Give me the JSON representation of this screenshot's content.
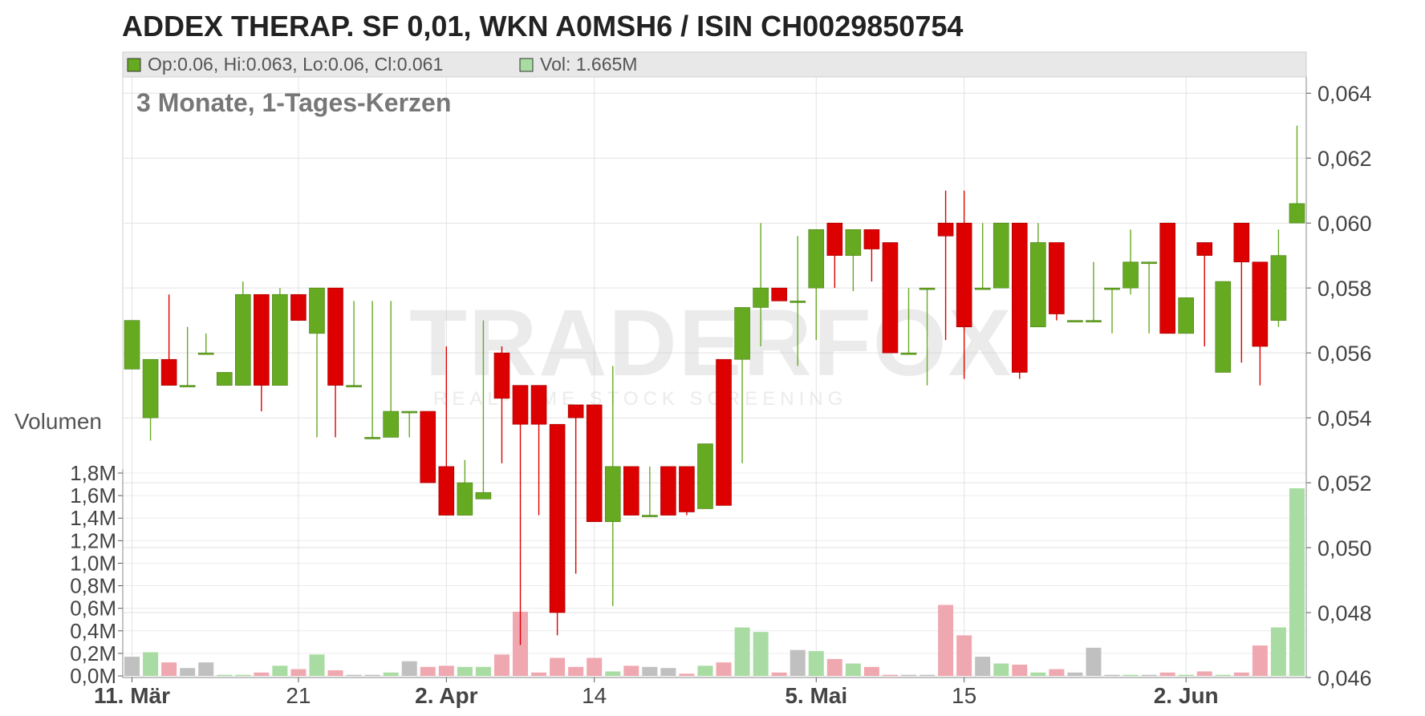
{
  "title": "ADDEX THERAP. SF 0,01, WKN A0MSH6 / ISIN CH0029850754",
  "legend": {
    "ohlc_text": "Op:0.06, Hi:0.063, Lo:0.06, Cl:0.061",
    "vol_text": "Vol: 1.665M"
  },
  "subtitle": "3 Monate, 1-Tages-Kerzen",
  "volume_axis_title": "Volumen",
  "watermark": {
    "brand": "TRADERFOX",
    "tagline": "REAL-TIME STOCK SCREENING"
  },
  "colors": {
    "up": "#66aa22",
    "down": "#dd0000",
    "vol_up": "#a8dca2",
    "vol_down": "#f0a8b0",
    "vol_flat": "#c0c0c0",
    "grid": "#e2e2e2",
    "legend_bg": "#e8e8e8"
  },
  "chart_data": {
    "type": "candlestick",
    "title": "ADDEX THERAP. SF 0,01, WKN A0MSH6 / ISIN CH0029850754",
    "subtitle": "3 Monate, 1-Tages-Kerzen",
    "price_axis": {
      "range": [
        0.046,
        0.0645
      ],
      "ticks": [
        "0,046",
        "0,048",
        "0,050",
        "0,052",
        "0,054",
        "0,056",
        "0,058",
        "0,060",
        "0,062",
        "0,064"
      ],
      "tick_values": [
        0.046,
        0.048,
        0.05,
        0.052,
        0.054,
        0.056,
        0.058,
        0.06,
        0.062,
        0.064
      ]
    },
    "volume_axis": {
      "title": "Volumen",
      "range": [
        0,
        1.8
      ],
      "unit": "M",
      "ticks": [
        "0,0M",
        "0,2M",
        "0,4M",
        "0,6M",
        "0,8M",
        "1,0M",
        "1,2M",
        "1,4M",
        "1,6M",
        "1,8M"
      ],
      "tick_values": [
        0,
        0.2,
        0.4,
        0.6,
        0.8,
        1.0,
        1.2,
        1.4,
        1.6,
        1.8
      ]
    },
    "x_axis": {
      "labels": [
        {
          "text": "11. Mär",
          "index": 0,
          "bold": true
        },
        {
          "text": "21",
          "index": 9,
          "bold": false
        },
        {
          "text": "2. Apr",
          "index": 17,
          "bold": true
        },
        {
          "text": "14",
          "index": 25,
          "bold": false
        },
        {
          "text": "5. Mai",
          "index": 37,
          "bold": true
        },
        {
          "text": "15",
          "index": 45,
          "bold": false
        },
        {
          "text": "2. Jun",
          "index": 57,
          "bold": true
        }
      ]
    },
    "candles": [
      {
        "o": 0.0555,
        "h": 0.057,
        "l": 0.0555,
        "c": 0.057,
        "v": 0.17
      },
      {
        "o": 0.054,
        "h": 0.0558,
        "l": 0.0533,
        "c": 0.0558,
        "v": 0.21
      },
      {
        "o": 0.0558,
        "h": 0.0578,
        "l": 0.055,
        "c": 0.055,
        "v": 0.12
      },
      {
        "o": 0.055,
        "h": 0.0568,
        "l": 0.055,
        "c": 0.055,
        "v": 0.07
      },
      {
        "o": 0.056,
        "h": 0.0566,
        "l": 0.056,
        "c": 0.056,
        "v": 0.12
      },
      {
        "o": 0.055,
        "h": 0.0554,
        "l": 0.055,
        "c": 0.0554,
        "v": 0.01
      },
      {
        "o": 0.055,
        "h": 0.0582,
        "l": 0.055,
        "c": 0.0578,
        "v": 0.01
      },
      {
        "o": 0.0578,
        "h": 0.0578,
        "l": 0.0542,
        "c": 0.055,
        "v": 0.03
      },
      {
        "o": 0.055,
        "h": 0.058,
        "l": 0.055,
        "c": 0.0578,
        "v": 0.09
      },
      {
        "o": 0.0578,
        "h": 0.0578,
        "l": 0.057,
        "c": 0.057,
        "v": 0.06
      },
      {
        "o": 0.0566,
        "h": 0.058,
        "l": 0.0534,
        "c": 0.058,
        "v": 0.19
      },
      {
        "o": 0.058,
        "h": 0.058,
        "l": 0.0534,
        "c": 0.055,
        "v": 0.05
      },
      {
        "o": 0.055,
        "h": 0.0576,
        "l": 0.055,
        "c": 0.055,
        "v": 0.01
      },
      {
        "o": 0.0534,
        "h": 0.0576,
        "l": 0.0534,
        "c": 0.0534,
        "v": 0.01
      },
      {
        "o": 0.0534,
        "h": 0.0576,
        "l": 0.0534,
        "c": 0.0542,
        "v": 0.03
      },
      {
        "o": 0.0542,
        "h": 0.0542,
        "l": 0.0534,
        "c": 0.0542,
        "v": 0.13
      },
      {
        "o": 0.0542,
        "h": 0.0542,
        "l": 0.052,
        "c": 0.052,
        "v": 0.08
      },
      {
        "o": 0.0525,
        "h": 0.0562,
        "l": 0.051,
        "c": 0.051,
        "v": 0.09
      },
      {
        "o": 0.051,
        "h": 0.0527,
        "l": 0.051,
        "c": 0.052,
        "v": 0.08
      },
      {
        "o": 0.0515,
        "h": 0.057,
        "l": 0.0515,
        "c": 0.0517,
        "v": 0.08
      },
      {
        "o": 0.056,
        "h": 0.0562,
        "l": 0.0526,
        "c": 0.0546,
        "v": 0.19
      },
      {
        "o": 0.055,
        "h": 0.055,
        "l": 0.047,
        "c": 0.0538,
        "v": 0.57
      },
      {
        "o": 0.055,
        "h": 0.055,
        "l": 0.051,
        "c": 0.0538,
        "v": 0.03
      },
      {
        "o": 0.0538,
        "h": 0.0538,
        "l": 0.0473,
        "c": 0.048,
        "v": 0.16
      },
      {
        "o": 0.0544,
        "h": 0.0544,
        "l": 0.0492,
        "c": 0.054,
        "v": 0.08
      },
      {
        "o": 0.0544,
        "h": 0.0544,
        "l": 0.0508,
        "c": 0.0508,
        "v": 0.16
      },
      {
        "o": 0.0508,
        "h": 0.0556,
        "l": 0.0482,
        "c": 0.0525,
        "v": 0.04
      },
      {
        "o": 0.0525,
        "h": 0.0525,
        "l": 0.051,
        "c": 0.051,
        "v": 0.09
      },
      {
        "o": 0.051,
        "h": 0.0525,
        "l": 0.051,
        "c": 0.051,
        "v": 0.08
      },
      {
        "o": 0.0525,
        "h": 0.0525,
        "l": 0.051,
        "c": 0.051,
        "v": 0.07
      },
      {
        "o": 0.0525,
        "h": 0.0525,
        "l": 0.051,
        "c": 0.0511,
        "v": 0.02
      },
      {
        "o": 0.0512,
        "h": 0.0532,
        "l": 0.0512,
        "c": 0.0532,
        "v": 0.09
      },
      {
        "o": 0.0558,
        "h": 0.0558,
        "l": 0.0513,
        "c": 0.0513,
        "v": 0.12
      },
      {
        "o": 0.0558,
        "h": 0.0574,
        "l": 0.0526,
        "c": 0.0574,
        "v": 0.43
      },
      {
        "o": 0.0574,
        "h": 0.06,
        "l": 0.0562,
        "c": 0.058,
        "v": 0.39
      },
      {
        "o": 0.058,
        "h": 0.058,
        "l": 0.0576,
        "c": 0.0576,
        "v": 0.03
      },
      {
        "o": 0.0576,
        "h": 0.0596,
        "l": 0.0556,
        "c": 0.0576,
        "v": 0.23
      },
      {
        "o": 0.058,
        "h": 0.0598,
        "l": 0.0564,
        "c": 0.0598,
        "v": 0.22
      },
      {
        "o": 0.06,
        "h": 0.06,
        "l": 0.058,
        "c": 0.059,
        "v": 0.15
      },
      {
        "o": 0.059,
        "h": 0.0598,
        "l": 0.0579,
        "c": 0.0598,
        "v": 0.11
      },
      {
        "o": 0.0598,
        "h": 0.0598,
        "l": 0.0582,
        "c": 0.0592,
        "v": 0.08
      },
      {
        "o": 0.0594,
        "h": 0.0594,
        "l": 0.056,
        "c": 0.056,
        "v": 0.01
      },
      {
        "o": 0.056,
        "h": 0.058,
        "l": 0.056,
        "c": 0.056,
        "v": 0.01
      },
      {
        "o": 0.058,
        "h": 0.058,
        "l": 0.055,
        "c": 0.058,
        "v": 0.01
      },
      {
        "o": 0.06,
        "h": 0.061,
        "l": 0.0564,
        "c": 0.0596,
        "v": 0.63
      },
      {
        "o": 0.06,
        "h": 0.061,
        "l": 0.0552,
        "c": 0.0568,
        "v": 0.36
      },
      {
        "o": 0.058,
        "h": 0.06,
        "l": 0.058,
        "c": 0.058,
        "v": 0.17
      },
      {
        "o": 0.058,
        "h": 0.06,
        "l": 0.058,
        "c": 0.06,
        "v": 0.11
      },
      {
        "o": 0.06,
        "h": 0.06,
        "l": 0.0552,
        "c": 0.0554,
        "v": 0.1
      },
      {
        "o": 0.0568,
        "h": 0.06,
        "l": 0.0568,
        "c": 0.0594,
        "v": 0.03
      },
      {
        "o": 0.0594,
        "h": 0.0594,
        "l": 0.057,
        "c": 0.0572,
        "v": 0.06
      },
      {
        "o": 0.057,
        "h": 0.057,
        "l": 0.057,
        "c": 0.057,
        "v": 0.03
      },
      {
        "o": 0.057,
        "h": 0.0588,
        "l": 0.057,
        "c": 0.057,
        "v": 0.25
      },
      {
        "o": 0.058,
        "h": 0.058,
        "l": 0.0566,
        "c": 0.058,
        "v": 0.01
      },
      {
        "o": 0.058,
        "h": 0.0598,
        "l": 0.0578,
        "c": 0.0588,
        "v": 0.01
      },
      {
        "o": 0.0588,
        "h": 0.0588,
        "l": 0.0566,
        "c": 0.0588,
        "v": 0.01
      },
      {
        "o": 0.06,
        "h": 0.06,
        "l": 0.0566,
        "c": 0.0566,
        "v": 0.03
      },
      {
        "o": 0.0566,
        "h": 0.0577,
        "l": 0.0566,
        "c": 0.0577,
        "v": 0.01
      },
      {
        "o": 0.0594,
        "h": 0.0594,
        "l": 0.0562,
        "c": 0.059,
        "v": 0.04
      },
      {
        "o": 0.0554,
        "h": 0.0582,
        "l": 0.0554,
        "c": 0.0582,
        "v": 0.01
      },
      {
        "o": 0.06,
        "h": 0.06,
        "l": 0.0557,
        "c": 0.0588,
        "v": 0.03
      },
      {
        "o": 0.0588,
        "h": 0.0588,
        "l": 0.055,
        "c": 0.0562,
        "v": 0.27
      },
      {
        "o": 0.057,
        "h": 0.0598,
        "l": 0.0568,
        "c": 0.059,
        "v": 0.43
      },
      {
        "o": 0.06,
        "h": 0.063,
        "l": 0.06,
        "c": 0.0606,
        "v": 1.665
      }
    ]
  }
}
